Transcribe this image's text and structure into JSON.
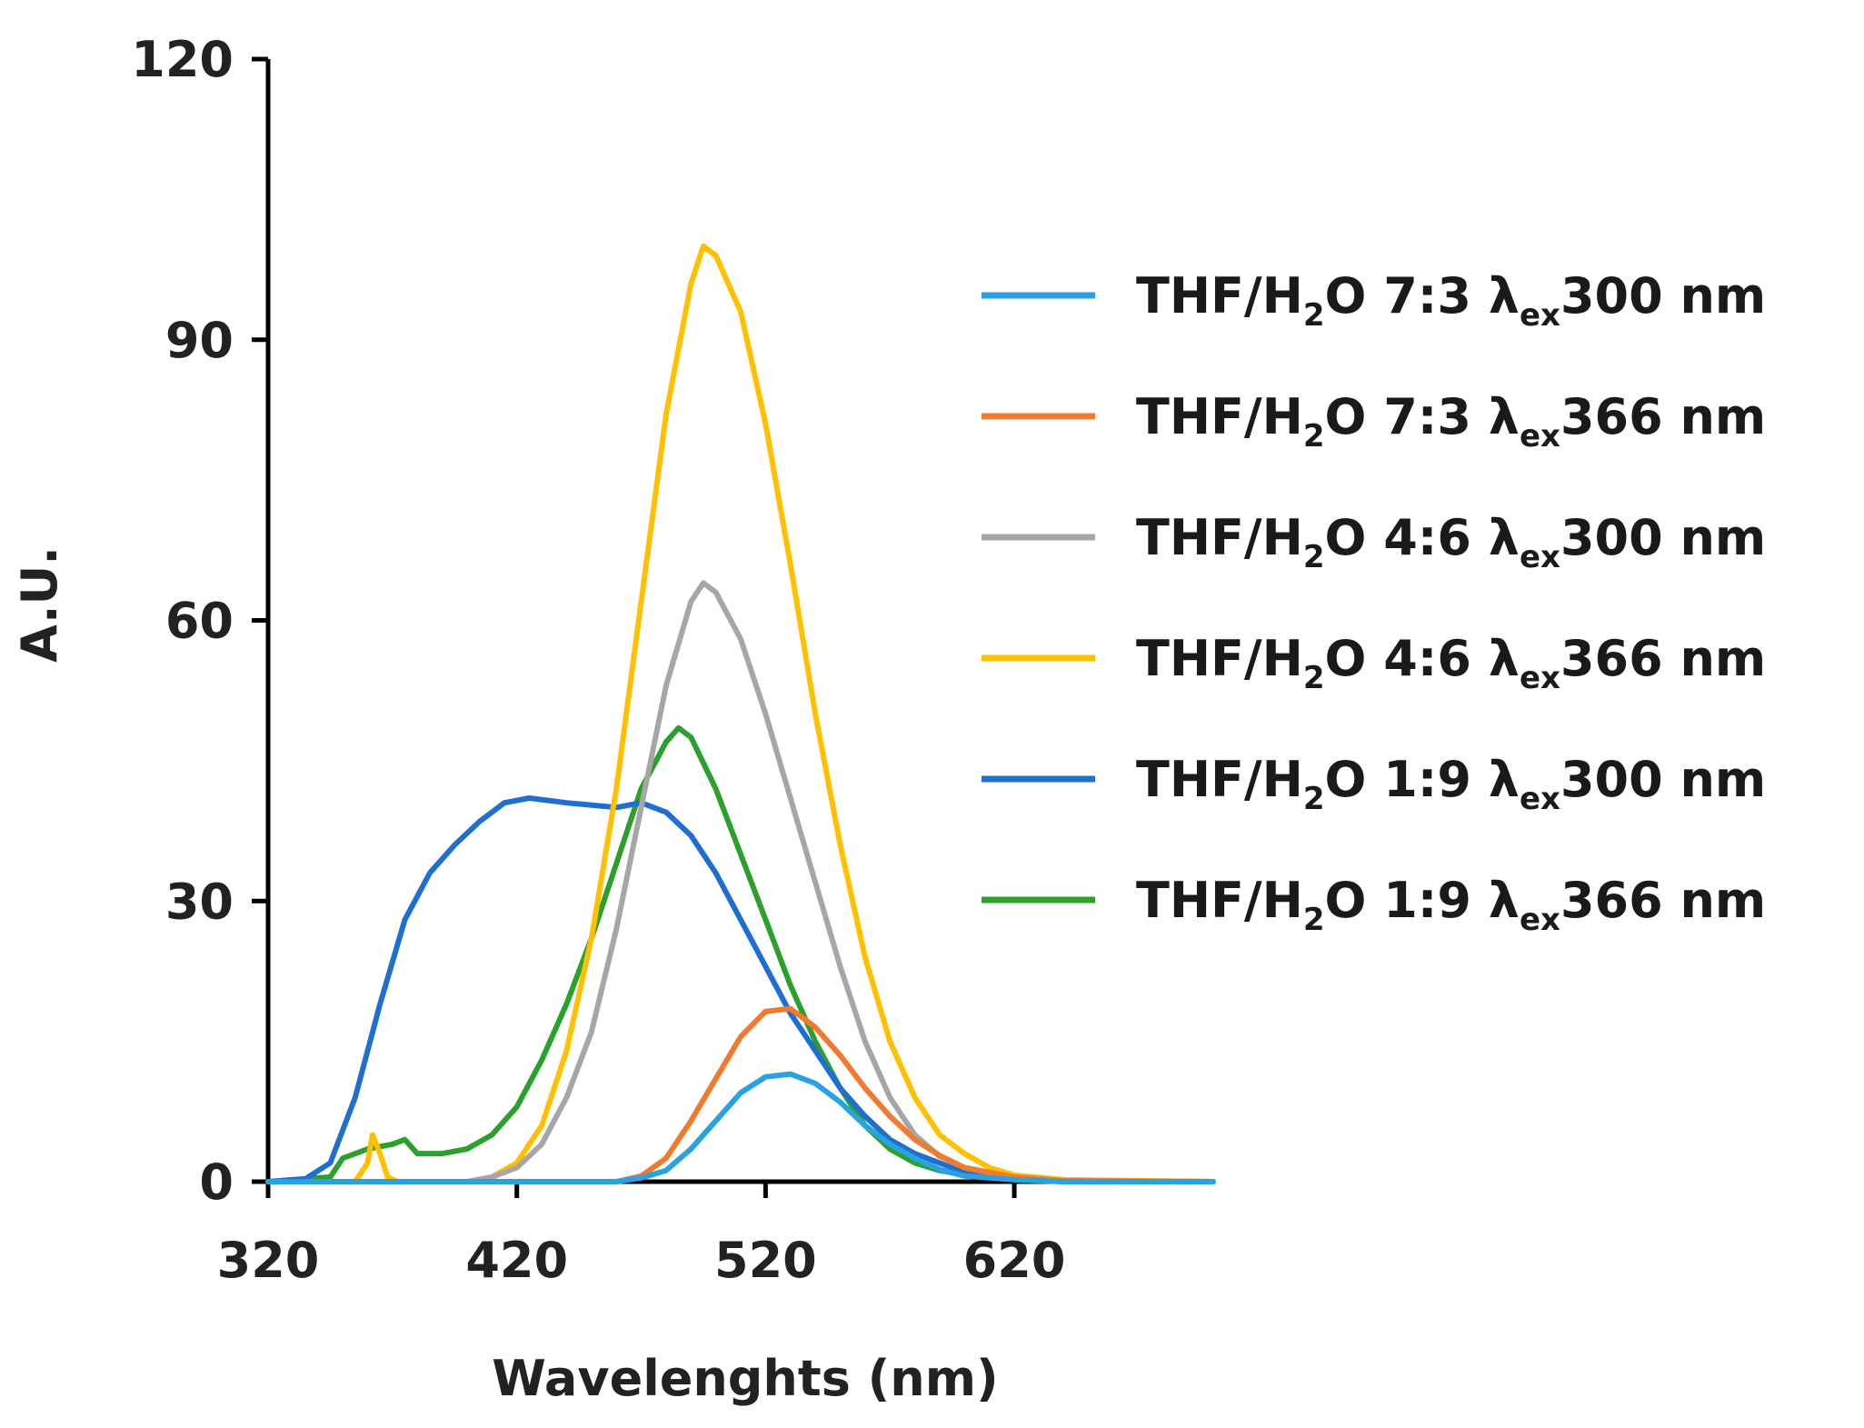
{
  "chart_data": {
    "type": "line",
    "title": "",
    "xlabel": "Wavelenghts (nm)",
    "ylabel": "A.U.",
    "xlim": [
      320,
      700
    ],
    "ylim": [
      0,
      120
    ],
    "xticks": [
      320,
      420,
      520,
      620
    ],
    "yticks": [
      0,
      30,
      60,
      90,
      120
    ],
    "grid": false,
    "legend_position": "right",
    "series": [
      {
        "name": "THF/H2O 7:3 λex300 nm",
        "legend": {
          "prefix": "THF/H",
          "sub": "2",
          "mid": "O 7:3 λ",
          "sub2": "ex",
          "suffix": "300 nm"
        },
        "color": "#29a3e0",
        "points": [
          [
            320,
            0
          ],
          [
            460,
            0
          ],
          [
            470,
            0.4
          ],
          [
            480,
            1.2
          ],
          [
            490,
            3.5
          ],
          [
            500,
            6.5
          ],
          [
            510,
            9.5
          ],
          [
            520,
            11.2
          ],
          [
            530,
            11.5
          ],
          [
            540,
            10.5
          ],
          [
            550,
            8.5
          ],
          [
            560,
            6
          ],
          [
            570,
            4
          ],
          [
            580,
            2.5
          ],
          [
            590,
            1.3
          ],
          [
            600,
            0.6
          ],
          [
            620,
            0.2
          ],
          [
            640,
            0
          ],
          [
            700,
            0
          ]
        ]
      },
      {
        "name": "THF/H2O 7:3 λex366 nm",
        "legend": {
          "prefix": "THF/H",
          "sub": "2",
          "mid": "O 7:3 λ",
          "sub2": "ex",
          "suffix": "366 nm"
        },
        "color": "#f07a30",
        "points": [
          [
            320,
            0
          ],
          [
            460,
            0
          ],
          [
            470,
            0.6
          ],
          [
            480,
            2.5
          ],
          [
            490,
            6.5
          ],
          [
            500,
            11
          ],
          [
            510,
            15.5
          ],
          [
            520,
            18.2
          ],
          [
            530,
            18.5
          ],
          [
            540,
            16.5
          ],
          [
            550,
            13.5
          ],
          [
            560,
            10
          ],
          [
            570,
            7
          ],
          [
            580,
            4.5
          ],
          [
            590,
            2.8
          ],
          [
            600,
            1.5
          ],
          [
            620,
            0.5
          ],
          [
            640,
            0.1
          ],
          [
            700,
            0
          ]
        ]
      },
      {
        "name": "THF/H2O 4:6 λex300 nm",
        "legend": {
          "prefix": "THF/H",
          "sub": "2",
          "mid": "O 4:6 λ",
          "sub2": "ex",
          "suffix": "300 nm"
        },
        "color": "#a6a6a6",
        "points": [
          [
            320,
            0
          ],
          [
            400,
            0
          ],
          [
            410,
            0.5
          ],
          [
            420,
            1.5
          ],
          [
            430,
            4
          ],
          [
            440,
            9
          ],
          [
            450,
            16
          ],
          [
            460,
            27
          ],
          [
            470,
            40
          ],
          [
            480,
            53
          ],
          [
            490,
            62
          ],
          [
            495,
            64
          ],
          [
            500,
            63
          ],
          [
            510,
            58
          ],
          [
            520,
            50
          ],
          [
            530,
            41
          ],
          [
            540,
            32
          ],
          [
            550,
            23
          ],
          [
            560,
            15
          ],
          [
            570,
            9
          ],
          [
            580,
            5
          ],
          [
            590,
            2.7
          ],
          [
            600,
            1.5
          ],
          [
            620,
            0.4
          ],
          [
            640,
            0.1
          ],
          [
            700,
            0
          ]
        ]
      },
      {
        "name": "THF/H2O 4:6 λex366 nm",
        "legend": {
          "prefix": "THF/H",
          "sub": "2",
          "mid": "O 4:6 λ",
          "sub2": "ex",
          "suffix": "366 nm"
        },
        "color": "#ffc000",
        "points": [
          [
            320,
            0
          ],
          [
            355,
            0
          ],
          [
            360,
            2
          ],
          [
            362,
            5
          ],
          [
            365,
            3
          ],
          [
            368,
            0.5
          ],
          [
            372,
            0
          ],
          [
            400,
            0
          ],
          [
            410,
            0.5
          ],
          [
            420,
            2
          ],
          [
            430,
            6
          ],
          [
            440,
            14
          ],
          [
            450,
            26
          ],
          [
            460,
            42
          ],
          [
            470,
            62
          ],
          [
            480,
            82
          ],
          [
            490,
            96
          ],
          [
            495,
            100
          ],
          [
            500,
            99
          ],
          [
            510,
            93
          ],
          [
            520,
            81
          ],
          [
            530,
            66
          ],
          [
            540,
            50
          ],
          [
            550,
            36
          ],
          [
            560,
            24
          ],
          [
            570,
            15
          ],
          [
            580,
            9
          ],
          [
            590,
            5
          ],
          [
            600,
            3
          ],
          [
            610,
            1.5
          ],
          [
            620,
            0.7
          ],
          [
            640,
            0.2
          ],
          [
            700,
            0
          ]
        ]
      },
      {
        "name": "THF/H2O 1:9 λex300 nm",
        "legend": {
          "prefix": "THF/H",
          "sub": "2",
          "mid": "O 1:9 λ",
          "sub2": "ex",
          "suffix": "300 nm"
        },
        "color": "#1f6fd1",
        "points": [
          [
            320,
            0
          ],
          [
            335,
            0.3
          ],
          [
            345,
            2
          ],
          [
            355,
            9
          ],
          [
            365,
            19
          ],
          [
            375,
            28
          ],
          [
            385,
            33
          ],
          [
            395,
            36
          ],
          [
            405,
            38.5
          ],
          [
            415,
            40.5
          ],
          [
            425,
            41
          ],
          [
            440,
            40.5
          ],
          [
            460,
            40
          ],
          [
            470,
            40.5
          ],
          [
            480,
            39.5
          ],
          [
            490,
            37
          ],
          [
            500,
            33
          ],
          [
            510,
            28
          ],
          [
            520,
            23
          ],
          [
            530,
            18
          ],
          [
            540,
            14
          ],
          [
            550,
            10
          ],
          [
            560,
            7
          ],
          [
            570,
            4.5
          ],
          [
            580,
            3
          ],
          [
            590,
            2
          ],
          [
            600,
            1
          ],
          [
            620,
            0.3
          ],
          [
            640,
            0
          ],
          [
            700,
            0
          ]
        ]
      },
      {
        "name": "THF/H2O 1:9 λex366 nm",
        "legend": {
          "prefix": "THF/H",
          "sub": "2",
          "mid": "O 1:9 λ",
          "sub2": "ex",
          "suffix": "366 nm"
        },
        "color": "#2ca02c",
        "points": [
          [
            320,
            0
          ],
          [
            345,
            0.5
          ],
          [
            350,
            2.5
          ],
          [
            360,
            3.5
          ],
          [
            370,
            4
          ],
          [
            375,
            4.5
          ],
          [
            380,
            3
          ],
          [
            390,
            3
          ],
          [
            400,
            3.5
          ],
          [
            410,
            5
          ],
          [
            420,
            8
          ],
          [
            430,
            13
          ],
          [
            440,
            19
          ],
          [
            450,
            26
          ],
          [
            460,
            34
          ],
          [
            470,
            42
          ],
          [
            480,
            47
          ],
          [
            485,
            48.5
          ],
          [
            490,
            47.5
          ],
          [
            500,
            42
          ],
          [
            510,
            35
          ],
          [
            520,
            28
          ],
          [
            530,
            21
          ],
          [
            540,
            15
          ],
          [
            550,
            10
          ],
          [
            560,
            6
          ],
          [
            570,
            3.5
          ],
          [
            580,
            2
          ],
          [
            590,
            1.2
          ],
          [
            600,
            0.7
          ],
          [
            620,
            0.3
          ],
          [
            640,
            0.1
          ],
          [
            700,
            0
          ]
        ]
      }
    ]
  }
}
